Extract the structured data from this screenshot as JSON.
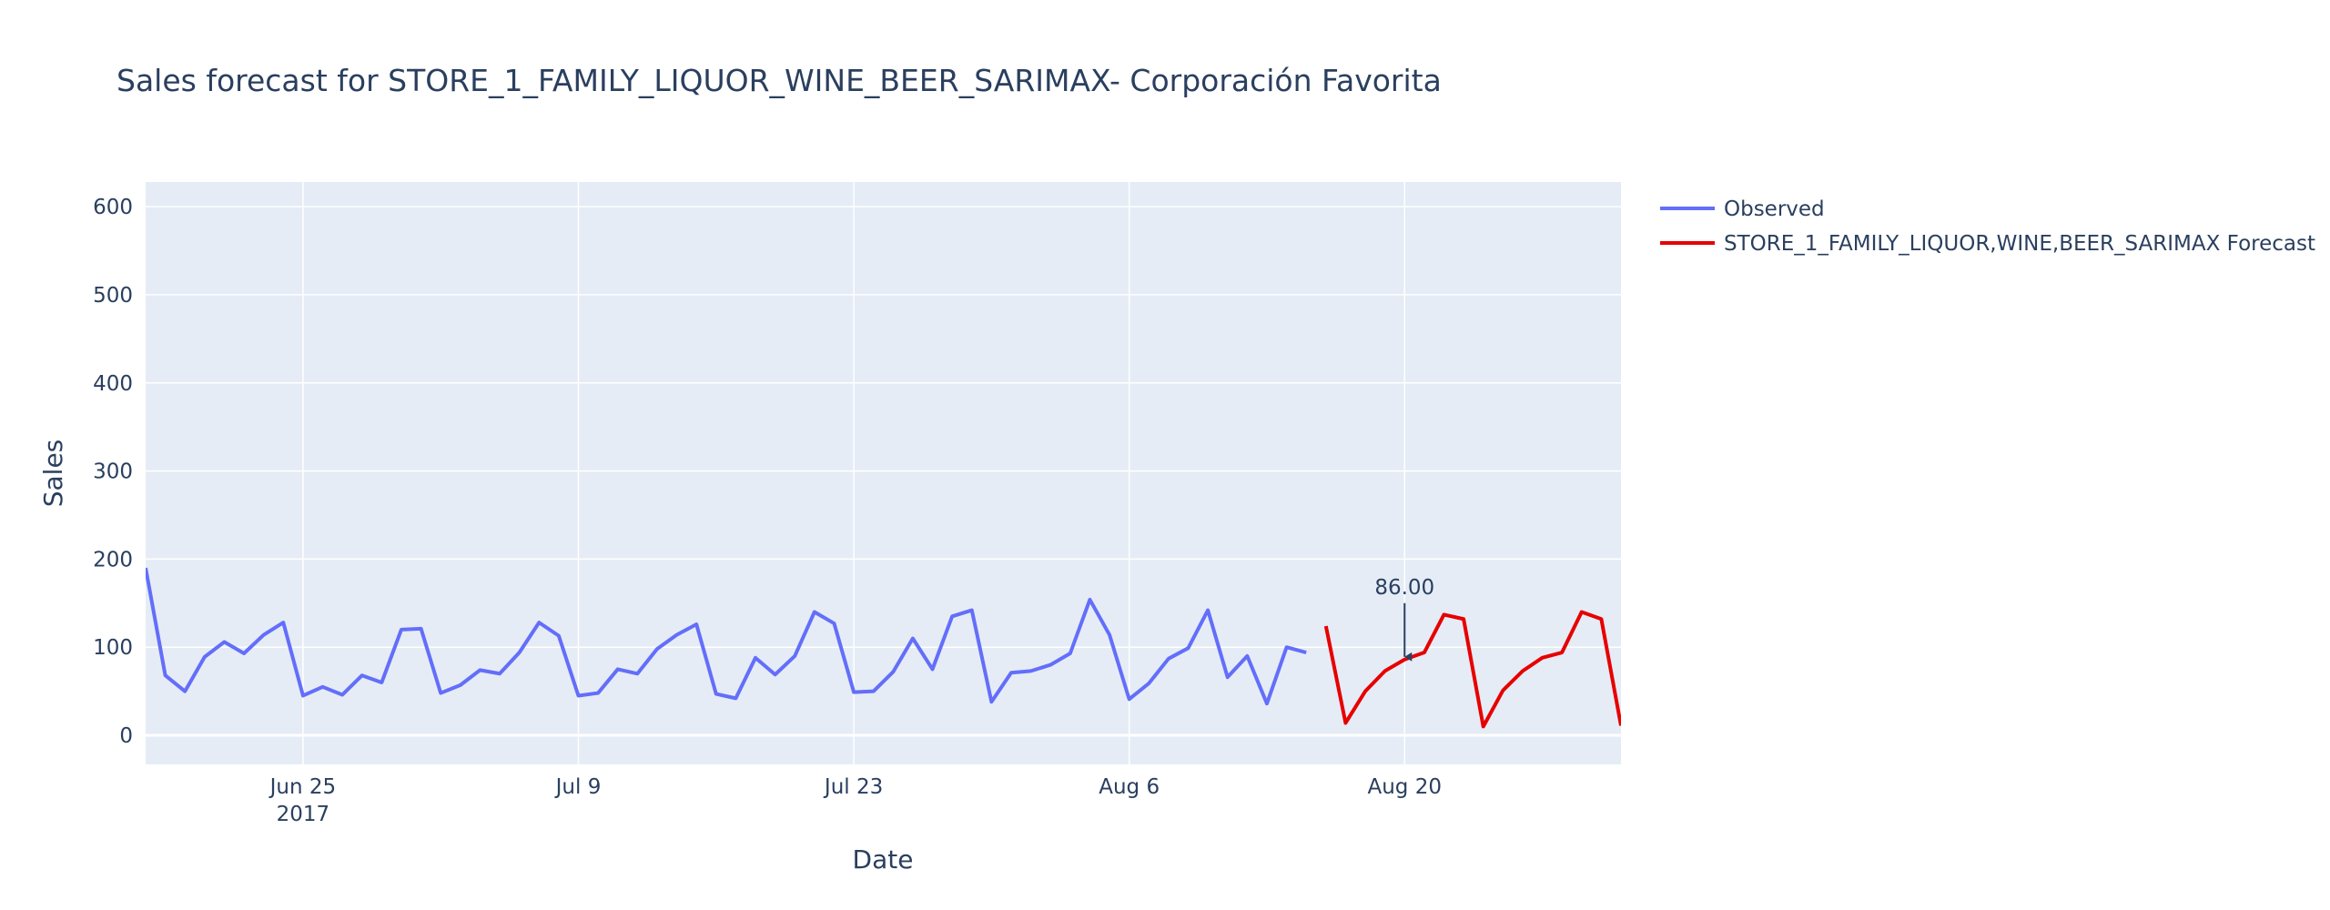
{
  "chart_data": {
    "type": "line",
    "title": "Sales forecast for STORE_1_FAMILY_LIQUOR_WINE_BEER_SARIMAX- Corporación Favorita",
    "xlabel": "Date",
    "ylabel": "Sales",
    "x_range": [
      "2017-06-17",
      "2017-08-31"
    ],
    "ylim": [
      -33,
      628
    ],
    "y_ticks": [
      0,
      100,
      200,
      300,
      400,
      500,
      600
    ],
    "x_ticks": [
      {
        "date": "2017-06-25",
        "label": "Jun 25",
        "sublabel": "2017"
      },
      {
        "date": "2017-07-09",
        "label": "Jul 9",
        "sublabel": ""
      },
      {
        "date": "2017-07-23",
        "label": "Jul 23",
        "sublabel": ""
      },
      {
        "date": "2017-08-06",
        "label": "Aug 6",
        "sublabel": ""
      },
      {
        "date": "2017-08-20",
        "label": "Aug 20",
        "sublabel": ""
      }
    ],
    "legend_position": "top-right, outside plot",
    "background": "#e5ecf6",
    "series": [
      {
        "name": "Observed",
        "color": "#636efa",
        "start_date": "2017-06-17",
        "values": [
          190,
          68,
          50,
          89,
          106,
          93,
          114,
          128,
          45,
          55,
          46,
          68,
          60,
          120,
          121,
          48,
          57,
          74,
          70,
          94,
          128,
          113,
          45,
          48,
          75,
          70,
          98,
          114,
          126,
          47,
          42,
          88,
          69,
          90,
          140,
          127,
          49,
          50,
          72,
          110,
          75,
          135,
          142,
          38,
          71,
          73,
          80,
          93,
          154,
          114,
          41,
          59,
          87,
          99,
          142,
          66,
          90,
          36,
          100,
          94
        ]
      },
      {
        "name": "STORE_1_FAMILY_LIQUOR,WINE,BEER_SARIMAX Forecast",
        "color": "#e60000",
        "start_date": "2017-08-16",
        "values": [
          124,
          14,
          50,
          73,
          86,
          94,
          137,
          132,
          10,
          51,
          73,
          88,
          94,
          140,
          132,
          11
        ]
      }
    ],
    "annotations": [
      {
        "date": "2017-08-20",
        "value": 86,
        "text": "86.00"
      }
    ]
  }
}
